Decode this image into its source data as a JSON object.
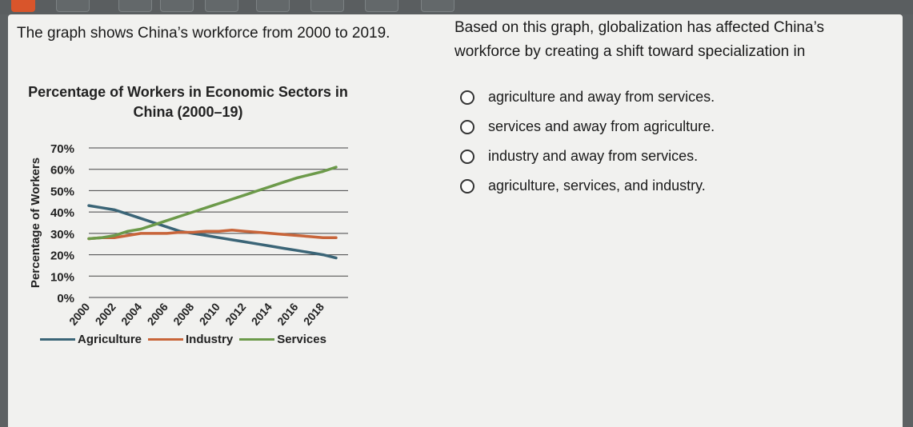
{
  "question_text": "The graph shows China’s workforce from 2000 to 2019.",
  "prompt_text": "Based on this graph, globalization has affected China’s workforce by creating a shift toward specialization in",
  "options": [
    "agriculture and away from services.",
    "services and away from agriculture.",
    "industry and away from services.",
    "agriculture, services, and industry."
  ],
  "colors": {
    "agriculture": "#3b6577",
    "industry": "#c8653a",
    "services": "#6c9a4a"
  },
  "chart_data": {
    "type": "line",
    "title": "Percentage of Workers in Economic Sectors in China (2000–19)",
    "xlabel": "",
    "ylabel": "Percentage of Workers",
    "ylim": [
      0,
      70
    ],
    "yticks": [
      "0%",
      "10%",
      "20%",
      "30%",
      "40%",
      "50%",
      "60%",
      "70%"
    ],
    "x": [
      2000,
      2001,
      2002,
      2003,
      2004,
      2005,
      2006,
      2007,
      2008,
      2009,
      2010,
      2011,
      2012,
      2013,
      2014,
      2015,
      2016,
      2017,
      2018,
      2019
    ],
    "xticks": [
      "2000",
      "2002",
      "2004",
      "2006",
      "2008",
      "2010",
      "2012",
      "2014",
      "2016",
      "2018"
    ],
    "grid": true,
    "legend": "bottom",
    "series": [
      {
        "name": "Agriculture",
        "values": [
          43,
          42,
          41,
          39,
          37,
          35,
          33,
          31,
          30,
          29,
          28,
          27,
          26,
          25,
          24,
          23,
          22,
          21,
          20,
          18.5
        ]
      },
      {
        "name": "Industry",
        "values": [
          27.5,
          28,
          28,
          29,
          30,
          30,
          30,
          30.5,
          30.5,
          31,
          31,
          31.5,
          31,
          30.5,
          30,
          29.5,
          29,
          28.5,
          28,
          28
        ]
      },
      {
        "name": "Services",
        "values": [
          27.5,
          28,
          29,
          31,
          32,
          34,
          36,
          38,
          40,
          42,
          44,
          46,
          48,
          50,
          52,
          54,
          56,
          57.5,
          59,
          61
        ]
      }
    ]
  }
}
